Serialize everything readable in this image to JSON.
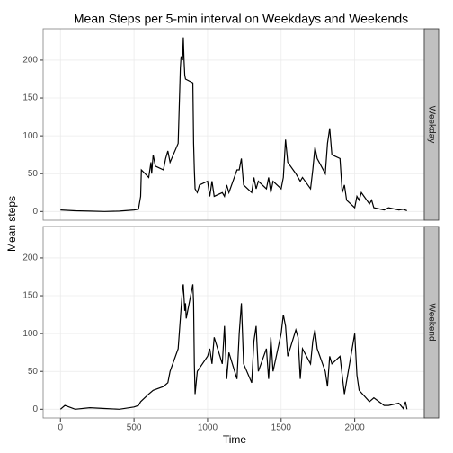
{
  "chart_data": {
    "type": "line",
    "title": "Mean Steps per 5-min interval on Weekdays and Weekends",
    "xlabel": "Time",
    "ylabel": "Mean steps",
    "xlim": [
      -117.75,
      2472.75
    ],
    "xticks": [
      0,
      500,
      1000,
      1500,
      2000
    ],
    "ylim": [
      -11.5,
      241.5
    ],
    "yticks": [
      0,
      50,
      100,
      150,
      200
    ],
    "grid": true,
    "series": [
      {
        "name": "Weekday",
        "color": "#000000",
        "x": [
          0,
          100,
          200,
          300,
          400,
          500,
          530,
          545,
          550,
          600,
          615,
          620,
          630,
          645,
          700,
          715,
          730,
          745,
          800,
          815,
          820,
          830,
          835,
          840,
          845,
          850,
          900,
          905,
          910,
          915,
          930,
          945,
          1000,
          1015,
          1030,
          1045,
          1100,
          1115,
          1130,
          1145,
          1200,
          1215,
          1230,
          1245,
          1300,
          1315,
          1330,
          1345,
          1400,
          1415,
          1430,
          1445,
          1500,
          1515,
          1530,
          1545,
          1600,
          1615,
          1630,
          1645,
          1700,
          1715,
          1730,
          1745,
          1800,
          1815,
          1830,
          1845,
          1900,
          1915,
          1930,
          1945,
          2000,
          2015,
          2030,
          2045,
          2100,
          2115,
          2130,
          2200,
          2230,
          2300,
          2330,
          2355
        ],
        "values": [
          2,
          1,
          0.5,
          0,
          0.5,
          2,
          3,
          20,
          55,
          45,
          65,
          50,
          75,
          60,
          55,
          70,
          80,
          65,
          90,
          190,
          205,
          200,
          230,
          200,
          180,
          175,
          170,
          90,
          55,
          30,
          25,
          35,
          40,
          20,
          40,
          20,
          25,
          20,
          35,
          25,
          55,
          55,
          70,
          35,
          25,
          45,
          30,
          40,
          30,
          45,
          25,
          40,
          30,
          45,
          95,
          65,
          50,
          45,
          40,
          45,
          30,
          55,
          85,
          70,
          50,
          90,
          110,
          75,
          70,
          25,
          35,
          15,
          5,
          20,
          15,
          25,
          10,
          15,
          5,
          2,
          5,
          2,
          3,
          1
        ]
      },
      {
        "name": "Weekend",
        "color": "#000000",
        "x": [
          0,
          30,
          100,
          200,
          300,
          400,
          500,
          530,
          545,
          600,
          630,
          700,
          730,
          745,
          800,
          815,
          830,
          835,
          845,
          850,
          855,
          900,
          905,
          910,
          915,
          930,
          1000,
          1015,
          1030,
          1045,
          1100,
          1115,
          1130,
          1145,
          1200,
          1215,
          1230,
          1245,
          1300,
          1315,
          1330,
          1345,
          1400,
          1415,
          1430,
          1445,
          1500,
          1515,
          1530,
          1545,
          1600,
          1615,
          1630,
          1645,
          1700,
          1715,
          1730,
          1745,
          1800,
          1815,
          1830,
          1845,
          1900,
          1915,
          1930,
          2000,
          2015,
          2030,
          2100,
          2130,
          2200,
          2230,
          2300,
          2330,
          2345,
          2355
        ],
        "values": [
          0,
          5,
          0,
          2,
          1,
          0,
          3,
          5,
          10,
          20,
          25,
          30,
          35,
          50,
          80,
          120,
          160,
          165,
          130,
          140,
          120,
          165,
          140,
          60,
          20,
          50,
          70,
          80,
          60,
          95,
          60,
          110,
          40,
          75,
          40,
          100,
          140,
          60,
          35,
          90,
          110,
          50,
          80,
          40,
          95,
          50,
          100,
          125,
          110,
          70,
          105,
          95,
          40,
          80,
          60,
          90,
          105,
          80,
          50,
          30,
          70,
          60,
          70,
          45,
          20,
          100,
          45,
          25,
          10,
          15,
          5,
          5,
          8,
          1,
          10,
          0
        ]
      }
    ]
  }
}
